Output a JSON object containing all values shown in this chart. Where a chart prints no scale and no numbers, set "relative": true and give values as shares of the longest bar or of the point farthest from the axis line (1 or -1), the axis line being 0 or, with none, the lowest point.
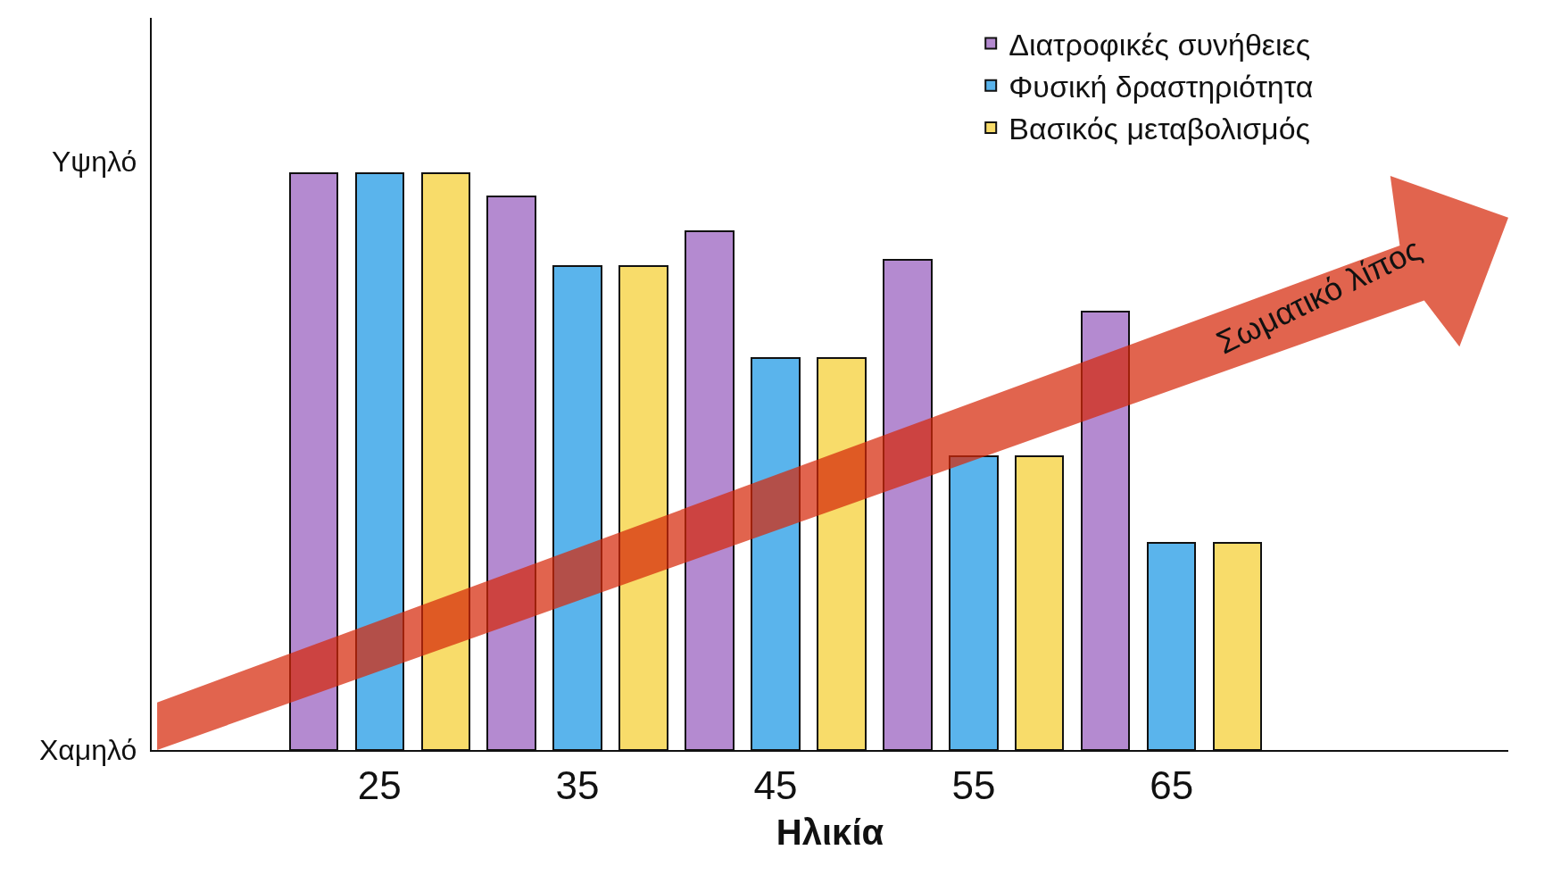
{
  "chart_data": {
    "type": "bar",
    "xlabel": "Ηλικία",
    "relative": true,
    "categories": [
      "25",
      "35",
      "45",
      "55",
      "65"
    ],
    "series": [
      {
        "name": "Διατροφικές συνήθειες",
        "color": "#b48ad0",
        "values": [
          1,
          0.96,
          0.9,
          0.85,
          0.76
        ]
      },
      {
        "name": "Φυσική δραστηριότητα",
        "color": "#5ab4ec",
        "values": [
          1,
          0.84,
          0.68,
          0.51,
          0.36
        ]
      },
      {
        "name": "Βασικός μεταβολισμός",
        "color": "#f8dc6a",
        "values": [
          1,
          0.84,
          0.68,
          0.51,
          0.36
        ]
      }
    ],
    "annotations": [
      "Υψηλό",
      "Χαμηλό",
      "Σωματικό λίπος"
    ],
    "legend": "top right"
  }
}
